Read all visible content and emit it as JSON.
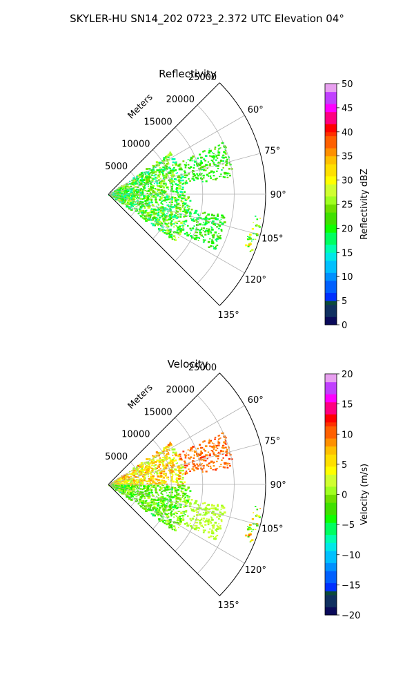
{
  "figure_title": "SKYLER-HU  SN14_202  0723_2.372 UTC Elevation 04°",
  "chart_data": [
    {
      "type": "heatmap",
      "subtype": "polar-sector",
      "title": "Reflectivity",
      "radial_label": "Meters",
      "radial_ticks": [
        "5000",
        "10000",
        "15000",
        "20000",
        "25000"
      ],
      "radial_range": [
        0,
        25000
      ],
      "angular_range_deg": [
        45,
        135
      ],
      "angular_ticks": [
        "60°",
        "75°",
        "90°",
        "105°",
        "120°",
        "135°"
      ],
      "grid": true,
      "colorbar": {
        "label": "Reflectivity dBZ",
        "range": [
          0,
          50
        ],
        "ticks": [
          "0",
          "5",
          "10",
          "15",
          "20",
          "25",
          "30",
          "35",
          "40",
          "45",
          "50"
        ]
      },
      "echo_regions": [
        {
          "az_range": [
            55,
            90
          ],
          "range_m": [
            0,
            12000
          ],
          "values": [
            15,
            28
          ]
        },
        {
          "az_range": [
            90,
            125
          ],
          "range_m": [
            0,
            13000
          ],
          "values": [
            15,
            28
          ]
        },
        {
          "az_range": [
            65,
            82
          ],
          "range_m": [
            12000,
            20000
          ],
          "values": [
            18,
            24
          ]
        },
        {
          "az_range": [
            100,
            118
          ],
          "range_m": [
            12000,
            19000
          ],
          "values": [
            17,
            24
          ]
        },
        {
          "az_range": [
            98,
            112
          ],
          "range_m": [
            23000,
            24500
          ],
          "values": [
            18,
            35
          ]
        }
      ]
    },
    {
      "type": "heatmap",
      "subtype": "polar-sector",
      "title": "Velocity",
      "radial_label": "Meters",
      "radial_ticks": [
        "5000",
        "10000",
        "15000",
        "20000",
        "25000"
      ],
      "radial_range": [
        0,
        25000
      ],
      "angular_range_deg": [
        45,
        135
      ],
      "angular_ticks": [
        "60°",
        "75°",
        "90°",
        "105°",
        "120°",
        "135°"
      ],
      "grid": true,
      "colorbar": {
        "label": "Velocity (m/s)",
        "range": [
          -20,
          20
        ],
        "ticks": [
          "−20",
          "−15",
          "−10",
          "−5",
          "0",
          "5",
          "10",
          "15",
          "20"
        ]
      },
      "echo_regions": [
        {
          "az_range": [
            55,
            90
          ],
          "range_m": [
            0,
            12000
          ],
          "values": [
            0,
            10
          ]
        },
        {
          "az_range": [
            90,
            125
          ],
          "range_m": [
            0,
            13000
          ],
          "values": [
            -5,
            2
          ]
        },
        {
          "az_range": [
            65,
            82
          ],
          "range_m": [
            12000,
            20000
          ],
          "values": [
            8,
            12
          ]
        },
        {
          "az_range": [
            100,
            118
          ],
          "range_m": [
            12000,
            19000
          ],
          "values": [
            0,
            3
          ]
        },
        {
          "az_range": [
            98,
            112
          ],
          "range_m": [
            23000,
            24500
          ],
          "values": [
            -5,
            12
          ]
        }
      ]
    }
  ]
}
